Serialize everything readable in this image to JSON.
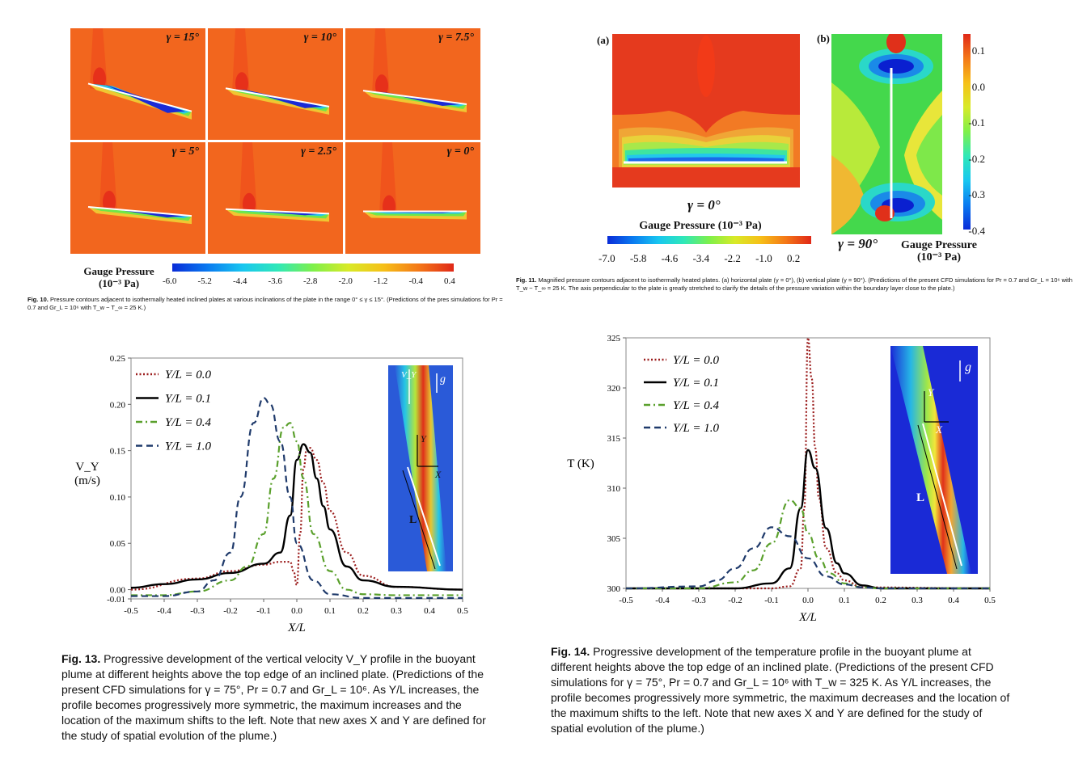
{
  "fig10": {
    "panels": [
      {
        "gamma": "γ = 15°",
        "tilt": 15
      },
      {
        "gamma": "γ = 10°",
        "tilt": 10
      },
      {
        "gamma": "γ = 7.5°",
        "tilt": 7.5
      },
      {
        "gamma": "γ = 5°",
        "tilt": 5
      },
      {
        "gamma": "γ = 2.5°",
        "tilt": 2.5
      },
      {
        "gamma": "γ = 0°",
        "tilt": 0
      }
    ],
    "colorbar_title": "Gauge Pressure (10⁻³ Pa)",
    "colorbar_ticks": [
      "-6.0",
      "-5.2",
      "-4.4",
      "-3.6",
      "-2.8",
      "-2.0",
      "-1.2",
      "-0.4",
      "0.4"
    ],
    "caption_label": "Fig. 10.",
    "caption": "Pressure contours adjacent to isothermally heated inclined plates at various inclinations of the plate in the range 0° ≤ γ ≤ 15°. (Predictions of the pres simulations for Pr = 0.7 and Gr_L = 10⁶ with T_w − T_∞ = 25 K.)"
  },
  "fig11": {
    "label_a": "(a)",
    "label_b": "(b)",
    "gamma_a": "γ = 0°",
    "gamma_b": "γ = 90°",
    "colorbar_title": "Gauge Pressure (10⁻³ Pa)",
    "colorbar_ticks_h": [
      "-7.0",
      "-5.8",
      "-4.6",
      "-3.4",
      "-2.2",
      "-1.0",
      "0.2"
    ],
    "colorbar_ticks_v": [
      "0.1",
      "0.0",
      "-0.1",
      "-0.2",
      "-0.3",
      "-0.4"
    ],
    "caption_label": "Fig. 11.",
    "caption": "Magnified pressure contours adjacent to isothermally heated plates. (a) horizontal plate (γ = 0°), (b) vertical plate (γ = 90°). (Predictions of the present CFD simulations for Pr = 0.7 and Gr_L = 10⁶ with T_w − T_∞ = 25 K. The axis perpendicular to the plate is greatly stretched to clarify the details of the pressure variation within the boundary layer close to the plate.)"
  },
  "fig13": {
    "caption_label": "Fig. 13.",
    "caption": "Progressive development of the vertical velocity V_Y profile in the buoyant plume at different heights above the top edge of an inclined plate. (Predictions of the present CFD simulations for γ = 75°, Pr = 0.7 and Gr_L = 10⁶. As Y/L increases, the profile becomes progressively more symmetric, the maximum increases and the location of the maximum shifts to the left. Note that new axes X and Y are defined for the study of spatial evolution of the plume.)",
    "inset_labels": {
      "vy": "V_Y",
      "g": "g",
      "y": "Y",
      "x": "X",
      "l": "L"
    },
    "chart_data": {
      "type": "line",
      "xlabel": "X/L",
      "ylabel": "V_Y (m/s)",
      "xlim": [
        -0.5,
        0.5
      ],
      "ylim": [
        -0.01,
        0.25
      ],
      "xticks": [
        "-0.5",
        "-0.4",
        "-0.3",
        "-0.2",
        "-0.1",
        "0.0",
        "0.1",
        "0.2",
        "0.3",
        "0.4",
        "0.5"
      ],
      "yticks": [
        "0.25",
        "0.20",
        "0.15",
        "0.10",
        "0.05",
        "0.00",
        "-0.01"
      ],
      "series": [
        {
          "name": "Y/L = 0.0",
          "style": "dotted",
          "color": "#9b1c1c",
          "x": [
            -0.5,
            -0.3,
            -0.2,
            -0.1,
            -0.05,
            -0.02,
            -0.01,
            0.0,
            0.01,
            0.02,
            0.03,
            0.04,
            0.06,
            0.08,
            0.1,
            0.15,
            0.2,
            0.3,
            0.5
          ],
          "y": [
            0.0,
            0.012,
            0.02,
            0.027,
            0.03,
            0.03,
            0.02,
            0.005,
            0.06,
            0.13,
            0.152,
            0.153,
            0.14,
            0.115,
            0.085,
            0.04,
            0.015,
            0.003,
            0.0
          ]
        },
        {
          "name": "Y/L = 0.1",
          "style": "solid",
          "color": "#000000",
          "x": [
            -0.5,
            -0.4,
            -0.3,
            -0.2,
            -0.1,
            -0.05,
            -0.02,
            0.0,
            0.02,
            0.04,
            0.06,
            0.08,
            0.1,
            0.15,
            0.2,
            0.3,
            0.5
          ],
          "y": [
            0.002,
            0.006,
            0.011,
            0.018,
            0.028,
            0.04,
            0.08,
            0.14,
            0.157,
            0.148,
            0.12,
            0.09,
            0.065,
            0.025,
            0.01,
            0.003,
            0.0
          ]
        },
        {
          "name": "Y/L = 0.4",
          "style": "dashdot",
          "color": "#5aa02c",
          "x": [
            -0.5,
            -0.4,
            -0.3,
            -0.2,
            -0.15,
            -0.1,
            -0.07,
            -0.04,
            -0.02,
            0.0,
            0.02,
            0.05,
            0.1,
            0.15,
            0.2,
            0.3,
            0.5
          ],
          "y": [
            -0.006,
            -0.006,
            -0.002,
            0.01,
            0.025,
            0.06,
            0.12,
            0.175,
            0.18,
            0.16,
            0.12,
            0.06,
            0.02,
            0.0,
            -0.005,
            -0.006,
            -0.006
          ]
        },
        {
          "name": "Y/L = 1.0",
          "style": "dashed",
          "color": "#1f3a6b",
          "x": [
            -0.5,
            -0.4,
            -0.3,
            -0.25,
            -0.2,
            -0.17,
            -0.13,
            -0.1,
            -0.08,
            -0.05,
            -0.02,
            0.0,
            0.05,
            0.1,
            0.2,
            0.3,
            0.5
          ],
          "y": [
            -0.007,
            -0.007,
            -0.002,
            0.01,
            0.04,
            0.1,
            0.18,
            0.207,
            0.2,
            0.16,
            0.1,
            0.05,
            0.01,
            -0.005,
            -0.009,
            -0.009,
            -0.009
          ]
        }
      ]
    }
  },
  "fig14": {
    "caption_label": "Fig. 14.",
    "caption": "Progressive development of the temperature profile in the buoyant plume at different heights above the top edge of an inclined plate. (Predictions of the present CFD simulations for γ = 75°, Pr = 0.7 and Gr_L = 10⁶ with T_w = 325 K. As Y/L increases, the profile becomes progressively more symmetric, the maximum decreases and the location of the maximum shifts to the left. Note that new axes X and Y are defined for the study of spatial evolution of the plume.)",
    "inset_labels": {
      "g": "g",
      "y": "Y",
      "x": "X",
      "l": "L"
    },
    "chart_data": {
      "type": "line",
      "xlabel": "X/L",
      "ylabel": "T (K)",
      "xlim": [
        -0.5,
        0.5
      ],
      "ylim": [
        300,
        325
      ],
      "xticks": [
        "-0.5",
        "-0.4",
        "-0.3",
        "-0.2",
        "-0.1",
        "0.0",
        "0.1",
        "0.2",
        "0.3",
        "0.4",
        "0.5"
      ],
      "yticks": [
        "325",
        "320",
        "315",
        "310",
        "305",
        "300"
      ],
      "series": [
        {
          "name": "Y/L = 0.0",
          "style": "dotted",
          "color": "#9b1c1c",
          "x": [
            -0.5,
            -0.1,
            -0.05,
            -0.02,
            -0.01,
            0.0,
            0.01,
            0.02,
            0.03,
            0.05,
            0.08,
            0.1,
            0.15,
            0.5
          ],
          "y": [
            300,
            300,
            300.2,
            302,
            308,
            325,
            321,
            314,
            309,
            304,
            301.5,
            300.8,
            300.1,
            300
          ]
        },
        {
          "name": "Y/L = 0.1",
          "style": "solid",
          "color": "#000000",
          "x": [
            -0.5,
            -0.2,
            -0.1,
            -0.05,
            -0.02,
            0.0,
            0.02,
            0.05,
            0.08,
            0.1,
            0.15,
            0.2,
            0.5
          ],
          "y": [
            300,
            300,
            300.5,
            302,
            308,
            313.8,
            312,
            306,
            302.5,
            301.5,
            300.3,
            300,
            300
          ]
        },
        {
          "name": "Y/L = 0.4",
          "style": "dashdot",
          "color": "#5aa02c",
          "x": [
            -0.5,
            -0.3,
            -0.2,
            -0.15,
            -0.1,
            -0.05,
            -0.02,
            0.0,
            0.03,
            0.06,
            0.1,
            0.15,
            0.2,
            0.5
          ],
          "y": [
            300,
            300,
            300.6,
            301.8,
            304.5,
            308.8,
            308,
            305.5,
            303,
            301.5,
            300.5,
            300.1,
            300,
            300
          ]
        },
        {
          "name": "Y/L = 1.0",
          "style": "dashed",
          "color": "#1f3a6b",
          "x": [
            -0.5,
            -0.3,
            -0.25,
            -0.2,
            -0.15,
            -0.1,
            -0.05,
            0.0,
            0.05,
            0.1,
            0.15,
            0.2,
            0.5
          ],
          "y": [
            300,
            300.2,
            300.8,
            302,
            304,
            306.1,
            305.2,
            303,
            301.2,
            300.4,
            300.1,
            300,
            300
          ]
        }
      ]
    }
  }
}
